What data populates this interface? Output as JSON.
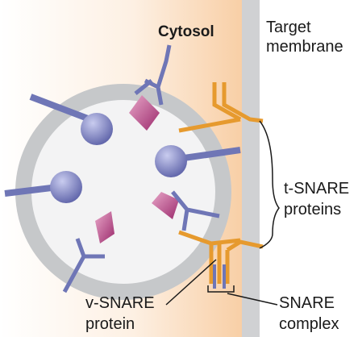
{
  "labels": {
    "cytosol": "Cytosol",
    "target_membrane_line1": "Target",
    "target_membrane_line2": "membrane",
    "t_snare_line1": "t-SNARE",
    "t_snare_line2": "proteins",
    "v_snare_line1": "v-SNARE",
    "v_snare_line2": "protein",
    "snare_complex_line1": "SNARE",
    "snare_complex_line2": "complex"
  },
  "colors": {
    "cytosol_gradient_start": "#ffffff",
    "cytosol_gradient_end": "#f8cfa6",
    "membrane": "#d0d1d3",
    "vesicle_ring": "#c6c8ca",
    "vesicle_lumen": "#f3f3f4",
    "receptor": "#6f76b6",
    "receptor_ball_light": "#c9ccef",
    "receptor_ball_dark": "#5a5fa6",
    "cargo": "#9b2a6c",
    "cargo_light": "#e8a6c8",
    "snare": "#e69a2e",
    "leader": "#1a1a1a"
  }
}
